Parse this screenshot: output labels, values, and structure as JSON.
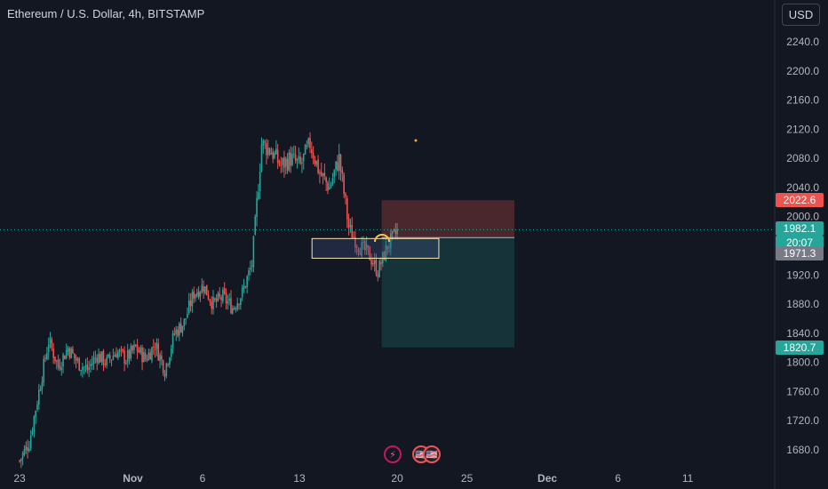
{
  "header": {
    "title": "Ethereum / U.S. Dollar, 4h, BITSTAMP",
    "currency_button": "USD"
  },
  "price_labels": {
    "stop_loss": "2022.6",
    "last_price": "1982.1",
    "countdown": "20:07",
    "entry": "1971.3",
    "take_profit": "1820.7"
  },
  "colors": {
    "background": "#131722",
    "up": "#26a69a",
    "down": "#ef5350",
    "stop_zone": "#ef5350",
    "target_zone": "#26a69a",
    "entry_tag": "#787b86",
    "box_outline": "#f5e6b0"
  },
  "events": [
    {
      "icon": "lightning-icon",
      "glyph": "⚡"
    },
    {
      "icon": "us-flag-icon",
      "glyph": "🇺🇸"
    }
  ],
  "chart_data": {
    "type": "candlestick",
    "title": "Ethereum / U.S. Dollar, 4h, BITSTAMP",
    "ylim": [
      1660,
      2270
    ],
    "y_ticks": [
      1680,
      1720,
      1760,
      1800,
      1840,
      1880,
      1920,
      2000,
      2040,
      2080,
      2120,
      2160,
      2200,
      2240
    ],
    "x_ticks": [
      "23",
      "Nov",
      "6",
      "13",
      "20",
      "25",
      "Dec",
      "6",
      "11"
    ],
    "y_axis_side": "right",
    "grid": false,
    "path_points": [
      {
        "d": 0,
        "p": 1665
      },
      {
        "d": 1,
        "p": 1690
      },
      {
        "d": 2,
        "p": 1760
      },
      {
        "d": 3,
        "p": 1830
      },
      {
        "d": 4,
        "p": 1795
      },
      {
        "d": 5,
        "p": 1820
      },
      {
        "d": 6,
        "p": 1800
      },
      {
        "d": 7,
        "p": 1790
      },
      {
        "d": 8,
        "p": 1810
      },
      {
        "d": 9,
        "p": 1800
      },
      {
        "d": 10,
        "p": 1815
      },
      {
        "d": 11,
        "p": 1805
      },
      {
        "d": 12,
        "p": 1820
      },
      {
        "d": 13,
        "p": 1805
      },
      {
        "d": 14,
        "p": 1825
      },
      {
        "d": 15,
        "p": 1790
      },
      {
        "d": 16,
        "p": 1840
      },
      {
        "d": 17,
        "p": 1855
      },
      {
        "d": 18,
        "p": 1895
      },
      {
        "d": 19,
        "p": 1905
      },
      {
        "d": 20,
        "p": 1880
      },
      {
        "d": 21,
        "p": 1890
      },
      {
        "d": 22,
        "p": 1875
      },
      {
        "d": 23,
        "p": 1895
      },
      {
        "d": 24,
        "p": 1935
      },
      {
        "d": 25,
        "p": 2100
      },
      {
        "d": 26,
        "p": 2090
      },
      {
        "d": 27,
        "p": 2070
      },
      {
        "d": 28,
        "p": 2080
      },
      {
        "d": 29,
        "p": 2070
      },
      {
        "d": 30,
        "p": 2100
      },
      {
        "d": 31,
        "p": 2060
      },
      {
        "d": 32,
        "p": 2040
      },
      {
        "d": 33,
        "p": 2080
      },
      {
        "d": 34,
        "p": 1985
      },
      {
        "d": 35,
        "p": 1960
      },
      {
        "d": 36,
        "p": 1950
      },
      {
        "d": 37,
        "p": 1925
      },
      {
        "d": 38,
        "p": 1960
      },
      {
        "d": 39,
        "p": 1980
      }
    ],
    "trade_setup": {
      "type": "short position",
      "start_day": 37.4,
      "end_day": 51.1,
      "entry": 1971.3,
      "stop_loss": 2022.6,
      "take_profit": 1820.7,
      "last_price": 1982.1
    },
    "zone_box": {
      "start_day": 30.2,
      "end_day": 43.3,
      "top": 1970,
      "bottom": 1943
    }
  }
}
